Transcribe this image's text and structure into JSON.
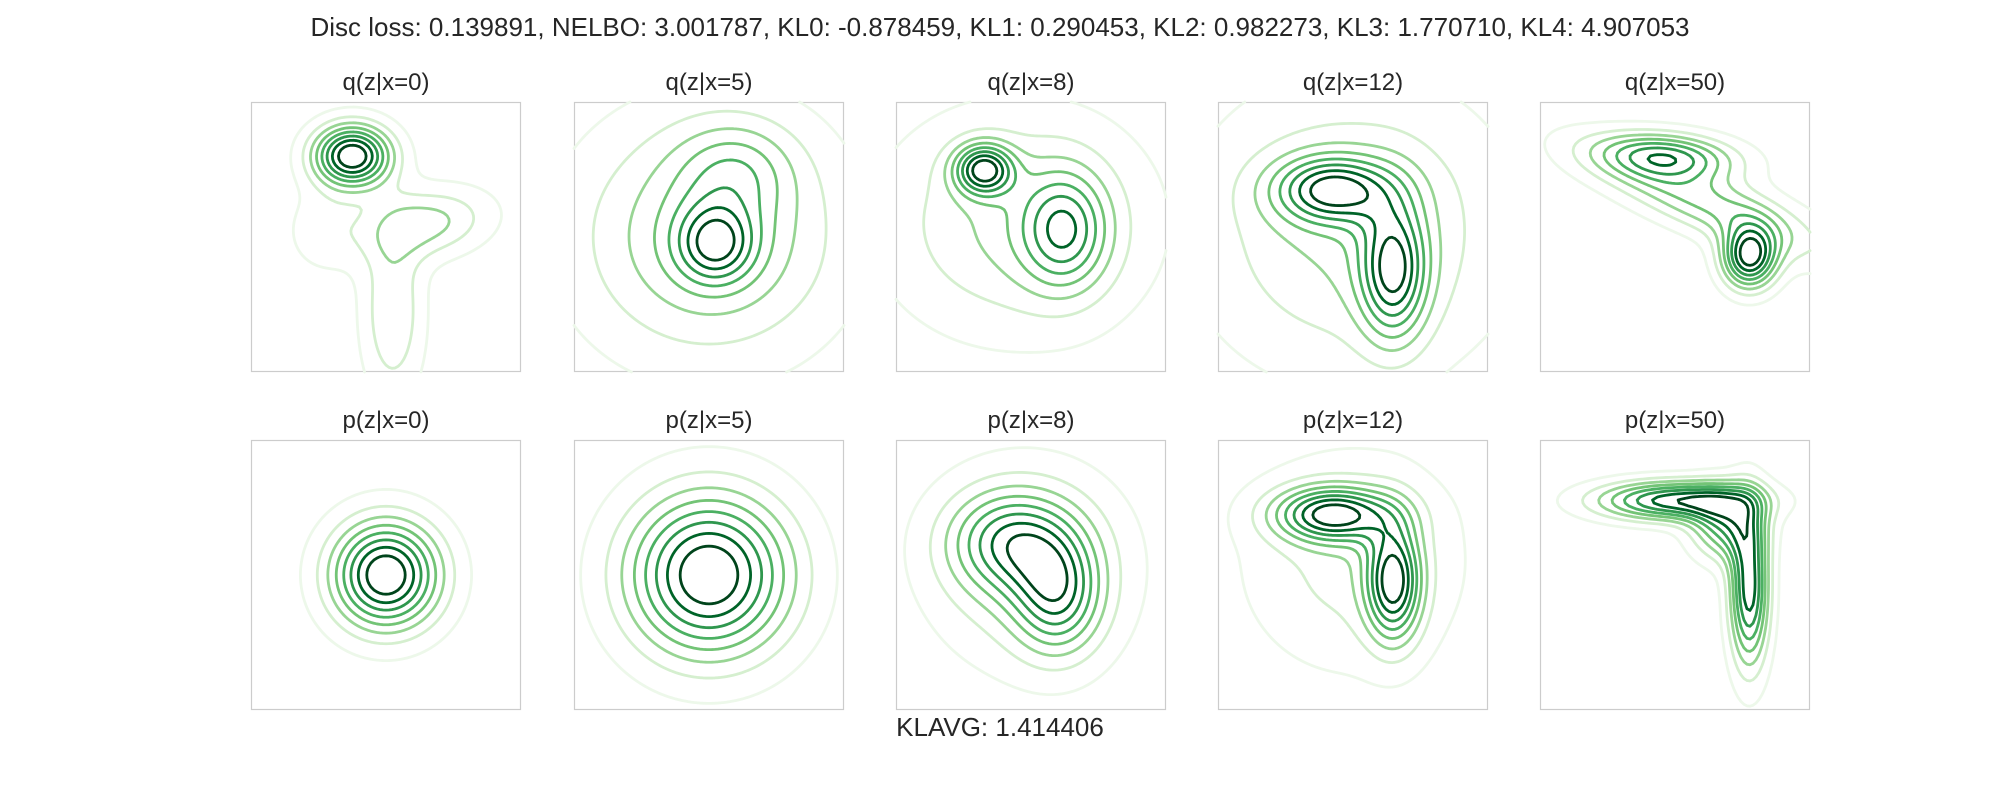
{
  "figure": {
    "suptitle": "Disc loss: 0.139891, NELBO: 3.001787, KL0: -0.878459, KL1: 0.290453, KL2: 0.982273, KL3: 1.770710, KL4: 4.907053",
    "footer": "KLAVG: 1.414406"
  },
  "chart_data": [
    {
      "type": "contour",
      "title": "q(z|x=0)",
      "grid": false,
      "colormap": "Greens",
      "levels": 8,
      "components": [
        {
          "cx": -0.25,
          "cy": 0.6,
          "sx": 0.2,
          "sy": 0.16,
          "rho": 0,
          "w": 1.0
        },
        {
          "cx": 0.3,
          "cy": 0.1,
          "sx": 0.32,
          "sy": 0.18,
          "rho": 0.2,
          "w": 0.35
        },
        {
          "cx": 0.05,
          "cy": -0.55,
          "sx": 0.16,
          "sy": 0.45,
          "rho": 0,
          "w": 0.3
        },
        {
          "cx": -0.45,
          "cy": 0.05,
          "sx": 0.2,
          "sy": 0.22,
          "rho": 0,
          "w": 0.15
        }
      ]
    },
    {
      "type": "contour",
      "title": "q(z|x=5)",
      "grid": false,
      "colormap": "Greens",
      "levels": 8,
      "components": [
        {
          "cx": 0.0,
          "cy": 0.0,
          "sx": 0.65,
          "sy": 0.6,
          "rho": 0,
          "w": 0.7
        },
        {
          "cx": 0.05,
          "cy": -0.05,
          "sx": 0.2,
          "sy": 0.2,
          "rho": 0,
          "w": 0.8
        },
        {
          "cx": 0.2,
          "cy": 0.5,
          "sx": 0.3,
          "sy": 0.25,
          "rho": 0,
          "w": 0.4
        }
      ]
    },
    {
      "type": "contour",
      "title": "q(z|x=8)",
      "grid": false,
      "colormap": "Greens",
      "levels": 8,
      "components": [
        {
          "cx": -0.35,
          "cy": 0.5,
          "sx": 0.15,
          "sy": 0.13,
          "rho": 0,
          "w": 1.0
        },
        {
          "cx": 0.25,
          "cy": 0.05,
          "sx": 0.22,
          "sy": 0.3,
          "rho": 0,
          "w": 0.7
        },
        {
          "cx": -0.1,
          "cy": 0.1,
          "sx": 0.65,
          "sy": 0.55,
          "rho": 0,
          "w": 0.45
        }
      ]
    },
    {
      "type": "contour",
      "title": "q(z|x=12)",
      "grid": false,
      "colormap": "Greens",
      "levels": 8,
      "components": [
        {
          "cx": -0.15,
          "cy": 0.35,
          "sx": 0.3,
          "sy": 0.17,
          "rho": 0,
          "w": 0.8
        },
        {
          "cx": 0.3,
          "cy": -0.25,
          "sx": 0.17,
          "sy": 0.35,
          "rho": 0,
          "w": 0.8
        },
        {
          "cx": 0.0,
          "cy": 0.05,
          "sx": 0.75,
          "sy": 0.7,
          "rho": 0,
          "w": 0.4
        }
      ]
    },
    {
      "type": "contour",
      "title": "q(z|x=50)",
      "grid": false,
      "colormap": "Greens",
      "levels": 8,
      "components": [
        {
          "cx": -0.05,
          "cy": 0.6,
          "sx": 0.35,
          "sy": 0.12,
          "rho": -0.2,
          "w": 0.7
        },
        {
          "cx": 0.55,
          "cy": -0.15,
          "sx": 0.14,
          "sy": 0.16,
          "rho": 0,
          "w": 1.0
        },
        {
          "cx": 0.25,
          "cy": 0.25,
          "sx": 0.6,
          "sy": 0.28,
          "rho": -0.8,
          "w": 0.5
        }
      ]
    },
    {
      "type": "contour",
      "title": "p(z|x=0)",
      "grid": false,
      "colormap": "Greens",
      "levels": 8,
      "components": [
        {
          "cx": 0.0,
          "cy": 0.0,
          "sx": 0.28,
          "sy": 0.28,
          "rho": 0,
          "w": 1.0
        }
      ]
    },
    {
      "type": "contour",
      "title": "p(z|x=5)",
      "grid": false,
      "colormap": "Greens",
      "levels": 8,
      "components": [
        {
          "cx": 0.0,
          "cy": 0.0,
          "sx": 0.42,
          "sy": 0.42,
          "rho": 0,
          "w": 1.0
        }
      ]
    },
    {
      "type": "contour",
      "title": "p(z|x=8)",
      "grid": false,
      "colormap": "Greens",
      "levels": 8,
      "components": [
        {
          "cx": -0.15,
          "cy": 0.25,
          "sx": 0.32,
          "sy": 0.26,
          "rho": 0,
          "w": 0.9
        },
        {
          "cx": 0.2,
          "cy": -0.15,
          "sx": 0.22,
          "sy": 0.3,
          "rho": 0,
          "w": 0.9
        },
        {
          "cx": 0.0,
          "cy": 0.05,
          "sx": 0.5,
          "sy": 0.5,
          "rho": 0,
          "w": 0.5
        }
      ]
    },
    {
      "type": "contour",
      "title": "p(z|x=12)",
      "grid": false,
      "colormap": "Greens",
      "levels": 8,
      "components": [
        {
          "cx": -0.15,
          "cy": 0.45,
          "sx": 0.3,
          "sy": 0.14,
          "rho": 0,
          "w": 1.0
        },
        {
          "cx": 0.3,
          "cy": -0.05,
          "sx": 0.14,
          "sy": 0.3,
          "rho": 0,
          "w": 1.0
        },
        {
          "cx": 0.0,
          "cy": 0.1,
          "sx": 0.55,
          "sy": 0.55,
          "rho": 0,
          "w": 0.3
        }
      ]
    },
    {
      "type": "contour",
      "title": "p(z|x=50)",
      "grid": false,
      "colormap": "Greens",
      "levels": 8,
      "components": [
        {
          "cx": 0.0,
          "cy": 0.55,
          "sx": 0.4,
          "sy": 0.1,
          "rho": 0,
          "w": 1.0
        },
        {
          "cx": 0.55,
          "cy": -0.1,
          "sx": 0.1,
          "sy": 0.4,
          "rho": 0,
          "w": 1.0
        },
        {
          "cx": 0.38,
          "cy": 0.38,
          "sx": 0.18,
          "sy": 0.18,
          "rho": 0,
          "w": 0.7
        }
      ]
    }
  ]
}
